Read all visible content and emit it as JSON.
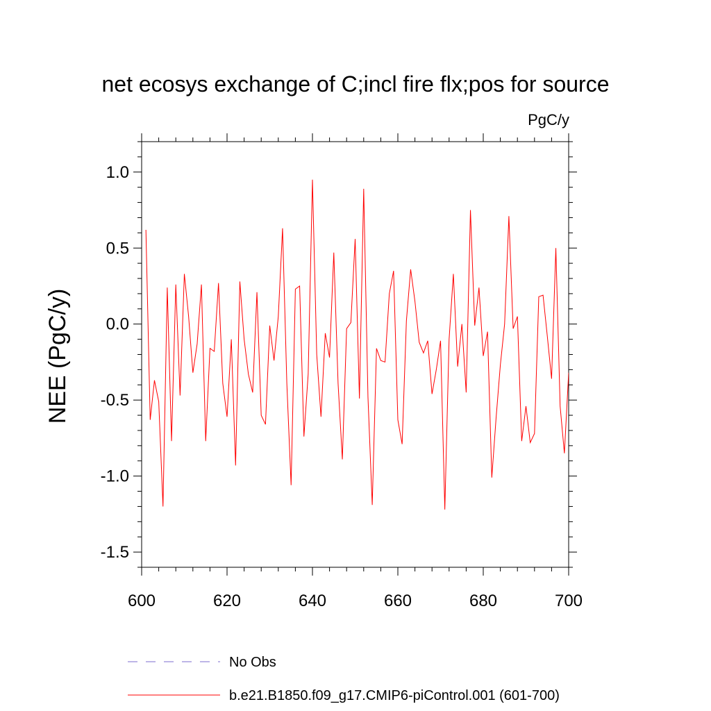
{
  "chart_data": {
    "type": "line",
    "title": "net ecosys exchange of C;incl fire flx;pos for source",
    "units": "PgC/y",
    "xlabel": "",
    "ylabel": "NEE  (PgC/y)",
    "xlim": [
      600,
      700
    ],
    "ylim": [
      -1.6,
      1.2
    ],
    "x_ticks": [
      600,
      620,
      640,
      660,
      680,
      700
    ],
    "x_tick_labels": [
      "600",
      "620",
      "640",
      "660",
      "680",
      "700"
    ],
    "y_ticks": [
      1.0,
      0.5,
      0.0,
      -0.5,
      -1.0,
      -1.5
    ],
    "y_tick_labels": [
      "1.0",
      "0.5",
      "0.0",
      "-0.5",
      "-1.0",
      "-1.5"
    ],
    "legend_position": "bottom",
    "series": [
      {
        "name": "b.e21.B1850.f09_g17.CMIP6-piControl.001 (601-700)",
        "color": "#ff0000",
        "style": "solid",
        "x": [
          601,
          602,
          603,
          604,
          605,
          606,
          607,
          608,
          609,
          610,
          611,
          612,
          613,
          614,
          615,
          616,
          617,
          618,
          619,
          620,
          621,
          622,
          623,
          624,
          625,
          626,
          627,
          628,
          629,
          630,
          631,
          632,
          633,
          634,
          635,
          636,
          637,
          638,
          639,
          640,
          641,
          642,
          643,
          644,
          645,
          646,
          647,
          648,
          649,
          650,
          651,
          652,
          653,
          654,
          655,
          656,
          657,
          658,
          659,
          660,
          661,
          662,
          663,
          664,
          665,
          666,
          667,
          668,
          669,
          670,
          671,
          672,
          673,
          674,
          675,
          676,
          677,
          678,
          679,
          680,
          681,
          682,
          683,
          684,
          685,
          686,
          687,
          688,
          689,
          690,
          691,
          692,
          693,
          694,
          695,
          696,
          697,
          698,
          699,
          700
        ],
        "values": [
          0.62,
          -0.63,
          -0.37,
          -0.51,
          -1.2,
          0.24,
          -0.77,
          0.26,
          -0.47,
          0.33,
          0.05,
          -0.32,
          -0.13,
          0.26,
          -0.77,
          -0.16,
          -0.18,
          0.27,
          -0.39,
          -0.61,
          -0.1,
          -0.93,
          0.28,
          -0.1,
          -0.33,
          -0.45,
          0.21,
          -0.6,
          -0.66,
          -0.01,
          -0.24,
          0.05,
          0.63,
          -0.39,
          -1.06,
          0.23,
          0.25,
          -0.74,
          -0.33,
          0.95,
          -0.2,
          -0.61,
          -0.06,
          -0.22,
          0.47,
          -0.39,
          -0.89,
          -0.03,
          0.01,
          0.56,
          -0.49,
          0.89,
          -0.48,
          -1.19,
          -0.16,
          -0.24,
          -0.25,
          0.2,
          0.35,
          -0.63,
          -0.79,
          0.02,
          0.36,
          0.15,
          -0.12,
          -0.19,
          -0.11,
          -0.46,
          -0.3,
          -0.11,
          -1.22,
          -0.1,
          0.33,
          -0.28,
          0.0,
          -0.45,
          0.75,
          -0.01,
          0.24,
          -0.21,
          -0.05,
          -1.01,
          -0.62,
          -0.27,
          0.0,
          0.71,
          -0.03,
          0.05,
          -0.77,
          -0.54,
          -0.78,
          -0.72,
          0.18,
          0.19,
          -0.08,
          -0.36,
          0.5,
          -0.54,
          -0.85,
          -0.32
        ]
      },
      {
        "name": "No Obs",
        "color": "#7b6bcf",
        "style": "dashed",
        "x": [],
        "values": []
      }
    ]
  }
}
